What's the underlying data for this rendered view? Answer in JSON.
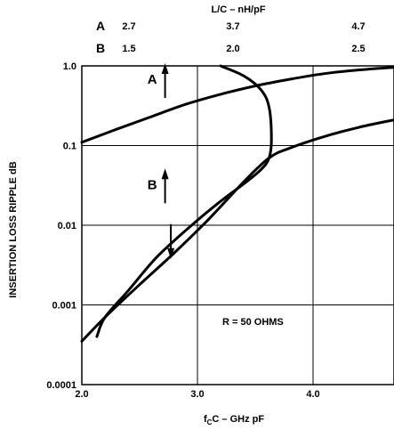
{
  "chart_data": {
    "type": "line",
    "top_axis": {
      "title": "L/C – nH/pF",
      "scales": [
        {
          "label": "A",
          "ticks": [
            "2.7",
            "3.7",
            "4.7"
          ]
        },
        {
          "label": "B",
          "ticks": [
            "1.5",
            "2.0",
            "2.5"
          ]
        }
      ]
    },
    "xlabel_main": "f",
    "xlabel_sub": "C",
    "xlabel_rest": "C – GHz pF",
    "ylabel": "INSERTION LOSS RIPPLE dB",
    "x_ticks": [
      "2.0",
      "3.0",
      "4.0"
    ],
    "y_ticks": [
      "1.0",
      "0.1",
      "0.01",
      "0.001",
      "0.0001"
    ],
    "xlim": [
      2.0,
      4.7
    ],
    "ylim": [
      0.0001,
      1.0
    ],
    "yscale": "log",
    "annotation": "R = 50 OHMS",
    "markers": [
      {
        "text": "A",
        "x": 2.72,
        "y": 0.63,
        "arrow": "up"
      },
      {
        "text": "B",
        "x": 2.72,
        "y": 0.03,
        "arrow": "up"
      },
      {
        "text": "",
        "x": 2.77,
        "y": 0.0065,
        "arrow": "down"
      }
    ],
    "series": [
      {
        "x": [
          2.0,
          2.3,
          2.6,
          2.9,
          3.2,
          3.5,
          3.8,
          4.1,
          4.4,
          4.7
        ],
        "y": [
          0.11,
          0.16,
          0.23,
          0.33,
          0.44,
          0.56,
          0.68,
          0.8,
          0.89,
          0.96
        ]
      },
      {
        "x": [
          2.0,
          2.2,
          2.5,
          2.8,
          3.1,
          3.4,
          3.62,
          3.8,
          4.1,
          4.4,
          4.7
        ],
        "y": [
          0.00035,
          0.0007,
          0.0018,
          0.0045,
          0.012,
          0.035,
          0.07,
          0.093,
          0.13,
          0.17,
          0.21
        ]
      },
      {
        "x": [
          3.2,
          3.4,
          3.55,
          3.62,
          3.64,
          3.62,
          3.55,
          3.4,
          3.2,
          2.95,
          2.65,
          2.4,
          2.2,
          2.13
        ],
        "y": [
          1.0,
          0.75,
          0.5,
          0.3,
          0.12,
          0.07,
          0.05,
          0.033,
          0.02,
          0.01,
          0.004,
          0.0015,
          0.0007,
          0.0004
        ]
      }
    ]
  }
}
